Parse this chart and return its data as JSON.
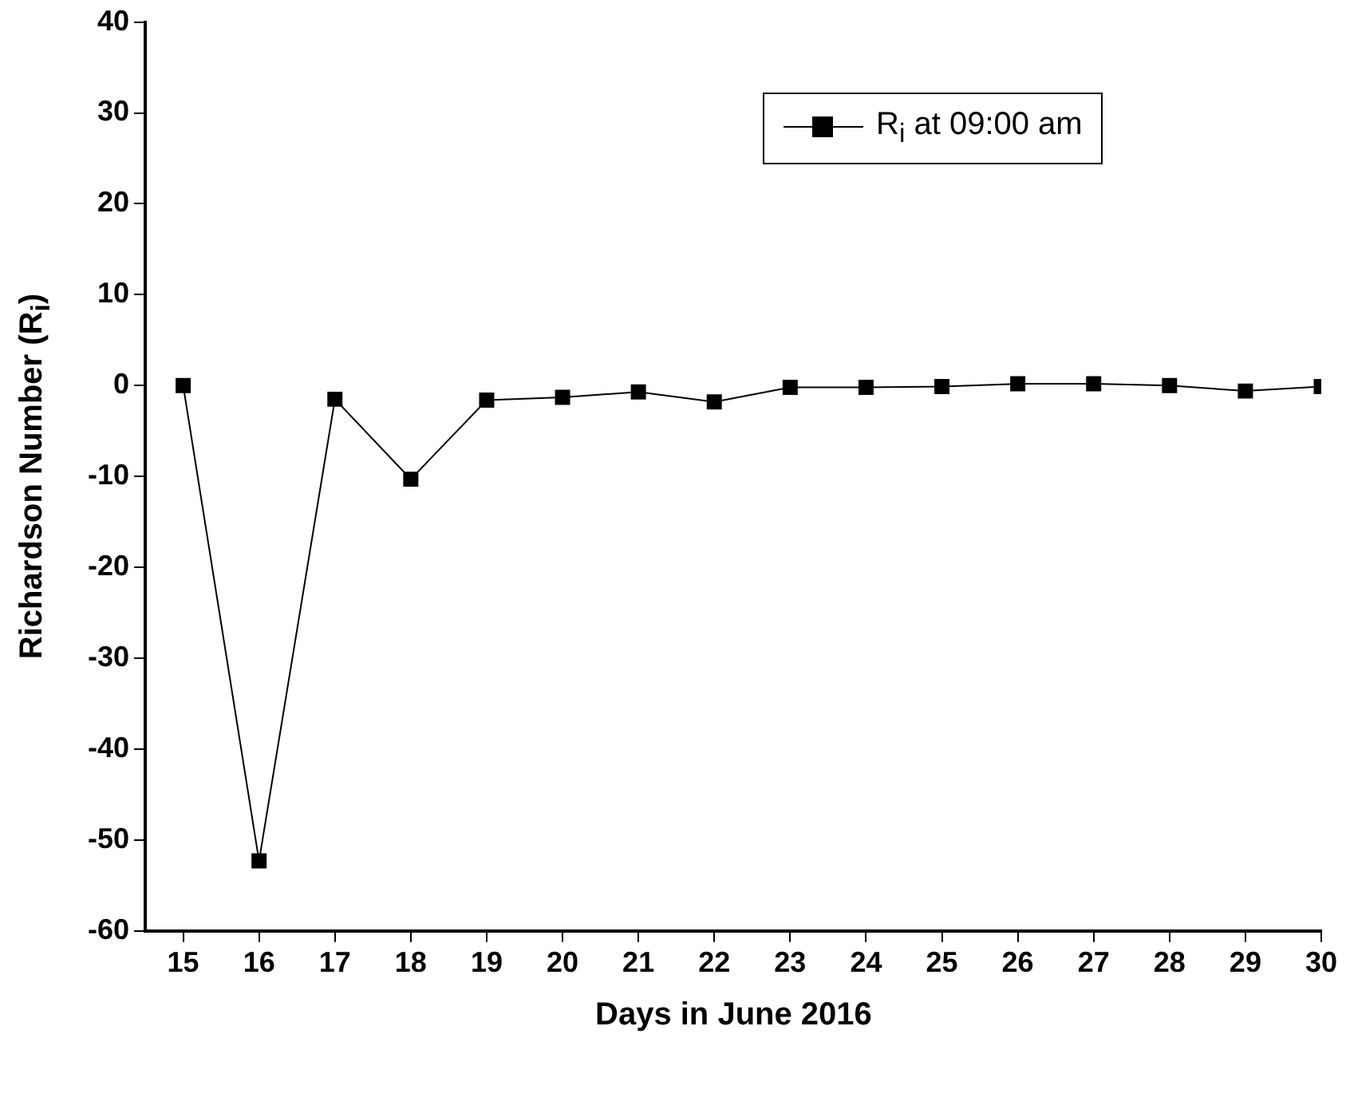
{
  "chart_data": {
    "type": "line",
    "xlabel": "Days in June 2016",
    "ylabel": "Richardson Number (R$_{i}$)",
    "x": [
      15,
      16,
      17,
      18,
      19,
      20,
      21,
      22,
      23,
      24,
      25,
      26,
      27,
      28,
      29,
      30
    ],
    "series": [
      {
        "name": "R$_{i}$ at 09:00 am",
        "color": "#000000",
        "values": [
          0,
          -52.3,
          -1.5,
          -10.3,
          -1.6,
          -1.3,
          -0.7,
          -1.8,
          -0.2,
          -0.2,
          -0.1,
          0.2,
          0.2,
          0,
          -0.6,
          -0.1
        ]
      }
    ],
    "xlim": [
      14.5,
      30
    ],
    "xticks": [
      15,
      16,
      17,
      18,
      19,
      20,
      21,
      22,
      23,
      24,
      25,
      26,
      27,
      28,
      29,
      30
    ],
    "ylim": [
      -60,
      40
    ],
    "yticks": [
      -60,
      -50,
      -40,
      -30,
      -20,
      -10,
      0,
      10,
      20,
      30,
      40
    ],
    "grid": false,
    "legend": "top right",
    "marker": "square",
    "line_style": "solid"
  }
}
